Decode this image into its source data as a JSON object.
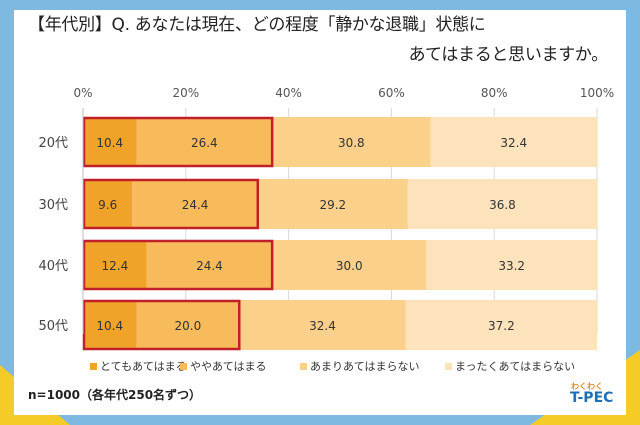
{
  "title": {
    "line1": "【年代別】Q. あなたは現在、どの程度「静かな退職」状態に",
    "line2": "あてはまると思いますか。"
  },
  "note": "n=1000（各年代250名ずつ）",
  "logo": {
    "small": "わくわく",
    "main": "T-PEC"
  },
  "colors": {
    "s1": "#f0a329",
    "s2": "#f8bb5c",
    "s3": "#fbd08b",
    "s4": "#fde3bb",
    "highlight": "#c0202a"
  },
  "chart_data": {
    "type": "bar",
    "orientation": "horizontal",
    "stacked": "percent",
    "categories": [
      "20代",
      "30代",
      "40代",
      "50代"
    ],
    "series": [
      {
        "name": "とてもあてはまる",
        "values": [
          10.4,
          9.6,
          12.4,
          10.4
        ]
      },
      {
        "name": "ややあてはまる",
        "values": [
          26.4,
          24.4,
          24.4,
          20.0
        ]
      },
      {
        "name": "あまりあてはまらない",
        "values": [
          30.8,
          29.2,
          30.0,
          32.4
        ]
      },
      {
        "name": "まったくあてはまらない",
        "values": [
          32.4,
          36.8,
          33.2,
          37.2
        ]
      }
    ],
    "value_labels": [
      [
        "10.4",
        "26.4",
        "30.8",
        "32.4"
      ],
      [
        "9.6",
        "24.4",
        "29.2",
        "36.8"
      ],
      [
        "12.4",
        "24.4",
        "30.0",
        "33.2"
      ],
      [
        "10.4",
        "20.0",
        "32.4",
        "37.2"
      ]
    ],
    "xticks": [
      "0%",
      "20%",
      "40%",
      "60%",
      "80%",
      "100%"
    ],
    "xlim": [
      0,
      100
    ],
    "grid": true,
    "legend_position": "bottom",
    "highlight": "first two series outlined in red for each category"
  }
}
